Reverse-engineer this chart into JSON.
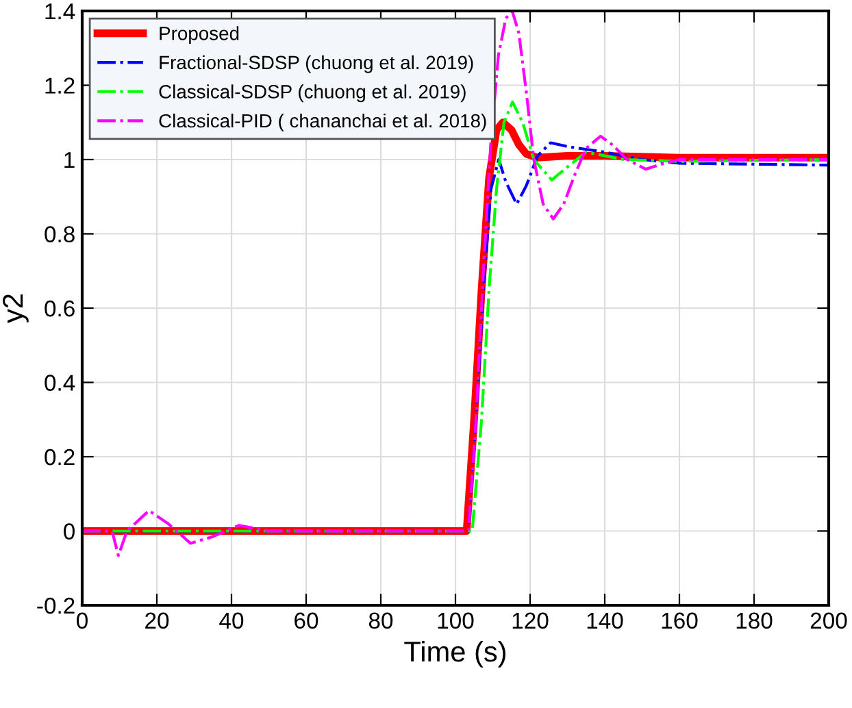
{
  "chart_data": {
    "type": "line",
    "xlabel": "Time (s)",
    "ylabel": "y2",
    "xlim": [
      0,
      200
    ],
    "xticks": [
      0,
      20,
      40,
      60,
      80,
      100,
      120,
      140,
      160,
      180,
      200
    ],
    "ylim": [
      -0.2,
      1.4
    ],
    "yticks": [
      -0.2,
      0,
      0.2,
      0.4,
      0.6,
      0.8,
      1,
      1.2,
      1.4
    ],
    "grid": true,
    "legend": "top left",
    "marker": "none",
    "series": [
      {
        "name": "Proposed",
        "color": "#ff0000",
        "line_style": "solid",
        "x": [
          0,
          103,
          105,
          107,
          109,
          111,
          112.7,
          115,
          117,
          119,
          122,
          130,
          140,
          160,
          200
        ],
        "values": [
          0,
          0,
          0.3,
          0.65,
          0.95,
          1.08,
          1.1,
          1.08,
          1.04,
          1.015,
          1.005,
          1.01,
          1.01,
          1.005,
          1.005
        ]
      },
      {
        "name": "Fractional-SDSP (chuong et al. 2019)",
        "color": "#0000ff",
        "line_style": "dashdot",
        "x": [
          0,
          103.5,
          105.5,
          107.5,
          109.5,
          111.6,
          113.5,
          116.4,
          119,
          122,
          125.5,
          130,
          140,
          150,
          160,
          200
        ],
        "values": [
          0,
          0,
          0.3,
          0.65,
          0.92,
          1.0,
          0.94,
          0.88,
          0.93,
          1.01,
          1.045,
          1.035,
          1.02,
          1.0,
          0.99,
          0.985
        ]
      },
      {
        "name": "Classical-SDSP (chuong et al. 2019)",
        "color": "#00ff00",
        "line_style": "dashdot",
        "x": [
          0,
          104.5,
          107,
          109,
          111,
          113,
          115.3,
          118,
          121,
          125.8,
          130,
          135,
          145,
          160,
          200
        ],
        "values": [
          0,
          0,
          0.3,
          0.65,
          0.92,
          1.1,
          1.155,
          1.1,
          1.0,
          0.945,
          0.98,
          1.02,
          1.0,
          0.995,
          1.0
        ]
      },
      {
        "name": "Classical-PID ( chananchai et al. 2018)",
        "color": "#ff00ff",
        "line_style": "dashdot",
        "x": [
          0,
          8,
          9.7,
          12,
          17.9,
          23,
          29,
          35,
          42,
          50,
          103.5,
          105.5,
          107.5,
          109.5,
          111.5,
          113.5,
          115.2,
          117,
          119,
          121,
          123.5,
          126.2,
          129,
          132,
          135,
          138.9,
          142,
          146,
          151,
          156,
          160,
          200
        ],
        "values": [
          0,
          0,
          -0.066,
          0.0,
          0.055,
          0.02,
          -0.033,
          -0.015,
          0.015,
          0,
          0,
          0.3,
          0.7,
          1.05,
          1.28,
          1.38,
          1.4,
          1.34,
          1.18,
          1.0,
          0.88,
          0.84,
          0.88,
          0.96,
          1.03,
          1.063,
          1.04,
          1.0,
          0.974,
          0.99,
          1.0,
          1.0
        ]
      }
    ]
  }
}
